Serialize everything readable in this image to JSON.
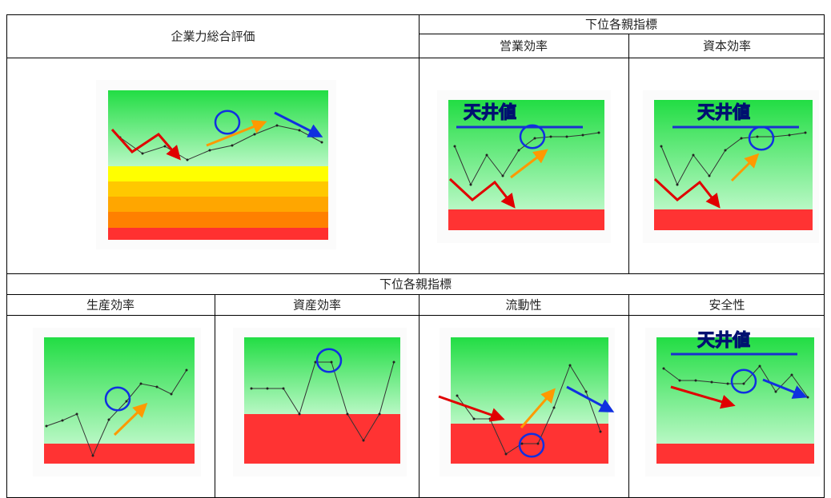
{
  "header": {
    "overall": "企業力総合評価",
    "sub_group": "下位各親指標",
    "operating": "営業効率",
    "capital": "資本効率"
  },
  "section2": {
    "title": "下位各親指標",
    "columns": [
      "生産効率",
      "資産効率",
      "流動性",
      "安全性"
    ]
  },
  "annotations": {
    "ceiling": "天井値"
  }
}
